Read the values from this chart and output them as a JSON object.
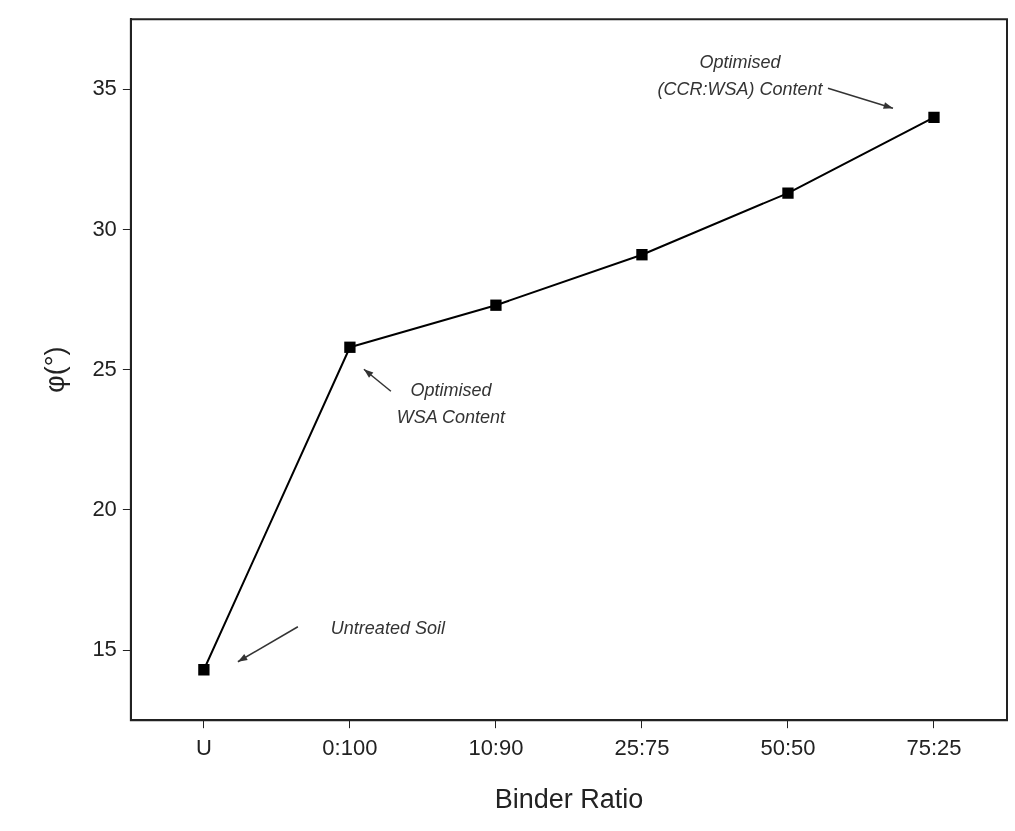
{
  "chart_data": {
    "type": "line",
    "xlabel": "Binder Ratio",
    "ylabel": "φ(°)",
    "categories": [
      "U",
      "0:100",
      "10:90",
      "25:75",
      "50:50",
      "75:25"
    ],
    "series": [
      {
        "color": "#000000",
        "values": [
          14.3,
          25.8,
          27.3,
          29.1,
          31.3,
          34.0
        ]
      }
    ],
    "ylim": [
      12.5,
      37.5
    ],
    "yticks": [
      15,
      20,
      25,
      30,
      35
    ],
    "grid": false,
    "legend": false,
    "marker": "square",
    "line_style": "solid",
    "annotations": [
      "Untreated Soil",
      "Optimised\nWSA Content",
      "Optimised\n(CCR:WSA) Content"
    ]
  }
}
